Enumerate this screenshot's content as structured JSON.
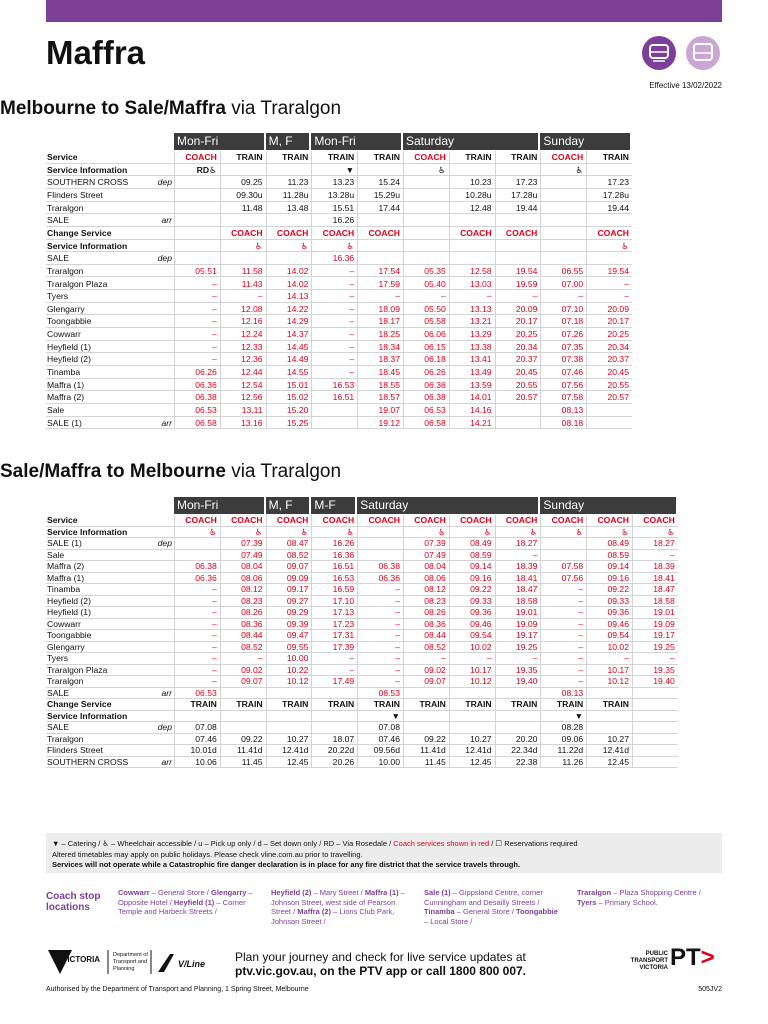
{
  "header": {
    "title": "Maffra",
    "effective": "Effective 13/02/2022"
  },
  "tables": [
    {
      "title": "Melbourne to Sale/Maffra",
      "via": "via Traralgon",
      "groups": [
        {
          "label": "Mon-Fri",
          "span": 2
        },
        {
          "label": "M, F",
          "span": 1
        },
        {
          "label": "Mon-Fri",
          "span": 2
        },
        {
          "label": "Saturday",
          "span": 3
        },
        {
          "label": "Sunday",
          "span": 2
        }
      ],
      "sections": [
        {
          "color": "#111111",
          "rows": [
            {
              "label": "Service",
              "bold": true,
              "cells": [
                {
                  "text": "COACH",
                  "color": "#e0001b"
                },
                "TRAIN",
                "TRAIN",
                "TRAIN",
                "TRAIN",
                {
                  "text": "COACH",
                  "color": "#e0001b"
                },
                "TRAIN",
                "TRAIN",
                {
                  "text": "COACH",
                  "color": "#e0001b"
                },
                "TRAIN"
              ]
            },
            {
              "label": "Service Information",
              "bold": true,
              "cells": [
                "RD♿",
                "",
                "",
                "▼",
                "",
                "♿",
                "",
                "",
                "♿",
                ""
              ]
            },
            {
              "label": "SOUTHERN CROSS",
              "note": "dep",
              "cells": [
                "",
                "09.25",
                "11.23",
                "13.23",
                "15.24",
                "",
                "10.23",
                "17.23",
                "",
                "17.23"
              ]
            },
            {
              "label": "Flinders Street",
              "cells": [
                "",
                "09.30u",
                "11.28u",
                "13.28u",
                "15.29u",
                "",
                "10.28u",
                "17.28u",
                "",
                "17.28u"
              ]
            },
            {
              "label": "Traralgon",
              "cells": [
                "",
                "11.48",
                "13.48",
                "15.51",
                "17.44",
                "",
                "12.48",
                "19.44",
                "",
                "19.44"
              ]
            },
            {
              "label": "SALE",
              "note": "arr",
              "cells": [
                "",
                "",
                "",
                "16.26",
                "",
                "",
                "",
                "",
                "",
                ""
              ]
            }
          ]
        },
        {
          "color": "#e0001b",
          "rows": [
            {
              "label": "Change Service",
              "bold": true,
              "cells": [
                "",
                "COACH",
                "COACH",
                "COACH",
                "COACH",
                "",
                "COACH",
                "COACH",
                "",
                "COACH"
              ]
            },
            {
              "label": "Service Information",
              "bold": true,
              "cells": [
                "",
                "♿",
                "♿",
                "♿",
                "",
                "",
                "",
                "",
                "",
                "♿"
              ]
            },
            {
              "label": "SALE",
              "note": "dep",
              "cells": [
                "",
                "",
                "",
                "16.36",
                "",
                "",
                "",
                "",
                "",
                ""
              ]
            },
            {
              "label": "Traralgon",
              "cells": [
                "05.51",
                "11.58",
                "14.02",
                "–",
                "17.54",
                "05.35",
                "12.58",
                "19.54",
                "06.55",
                "19.54"
              ]
            },
            {
              "label": "Traralgon Plaza",
              "cells": [
                "–",
                "11.43",
                "14.02",
                "–",
                "17.59",
                "05.40",
                "13.03",
                "19.59",
                "07.00",
                "–"
              ]
            },
            {
              "label": "Tyers",
              "cells": [
                "–",
                "–",
                "14.13",
                "–",
                "–",
                "–",
                "–",
                "–",
                "–",
                "–"
              ]
            },
            {
              "label": "Glengarry",
              "cells": [
                "–",
                "12.08",
                "14.22",
                "–",
                "18.09",
                "05.50",
                "13.13",
                "20.09",
                "07.10",
                "20.09"
              ]
            },
            {
              "label": "Toongabbie",
              "cells": [
                "–",
                "12.16",
                "14.29",
                "–",
                "18.17",
                "05.58",
                "13.21",
                "20.17",
                "07.18",
                "20.17"
              ]
            },
            {
              "label": "Cowwarr",
              "cells": [
                "–",
                "12.24",
                "14.37",
                "–",
                "18.25",
                "06.06",
                "13.29",
                "20.25",
                "07.26",
                "20.25"
              ]
            },
            {
              "label": "Heyfield (1)",
              "cells": [
                "–",
                "12.33",
                "14.45",
                "–",
                "18.34",
                "06.15",
                "13.38",
                "20.34",
                "07.35",
                "20.34"
              ]
            },
            {
              "label": "Heyfield (2)",
              "cells": [
                "–",
                "12.36",
                "14.49",
                "–",
                "18.37",
                "06.18",
                "13.41",
                "20.37",
                "07.38",
                "20.37"
              ]
            },
            {
              "label": "Tinamba",
              "cells": [
                "06.26",
                "12.44",
                "14.55",
                "–",
                "18.45",
                "06.26",
                "13.49",
                "20.45",
                "07.46",
                "20.45"
              ]
            },
            {
              "label": "Maffra (1)",
              "cells": [
                "06.36",
                "12.54",
                "15.01",
                "16.53",
                "18.55",
                "06.36",
                "13.59",
                "20.55",
                "07.56",
                "20.55"
              ]
            },
            {
              "label": "Maffra (2)",
              "cells": [
                "06.38",
                "12.56",
                "15.02",
                "16.51",
                "18.57",
                "06.38",
                "14.01",
                "20.57",
                "07.58",
                "20.57"
              ]
            },
            {
              "label": "Sale",
              "cells": [
                "06.53",
                "13.11",
                "15.20",
                "",
                "19.07",
                "06.53",
                "14.16",
                "",
                "08.13",
                ""
              ]
            },
            {
              "label": "SALE (1)",
              "note": "arr",
              "cells": [
                "06.58",
                "13.16",
                "15.25",
                "",
                "19.12",
                "06.58",
                "14.21",
                "",
                "08.18",
                ""
              ]
            }
          ]
        }
      ]
    },
    {
      "title": "Sale/Maffra to Melbourne",
      "via": "via Traralgon",
      "groups": [
        {
          "label": "Mon-Fri",
          "span": 2
        },
        {
          "label": "M, F",
          "span": 1
        },
        {
          "label": "M-F",
          "span": 1
        },
        {
          "label": "Saturday",
          "span": 4
        },
        {
          "label": "Sunday",
          "span": 3
        }
      ],
      "sections": [
        {
          "color": "#e0001b",
          "rows": [
            {
              "label": "Service",
              "bold": true,
              "cells": [
                "COACH",
                "COACH",
                "COACH",
                "COACH",
                "COACH",
                "COACH",
                "COACH",
                "COACH",
                "COACH",
                "COACH",
                "COACH"
              ]
            },
            {
              "label": "Service Information",
              "bold": true,
              "cells": [
                "♿",
                "♿",
                "♿",
                "♿",
                "",
                "♿",
                "♿",
                "♿",
                "♿",
                "♿",
                "♿"
              ]
            },
            {
              "label": "SALE (1)",
              "note": "dep",
              "cells": [
                "",
                "07.39",
                "08.47",
                "16.26",
                "",
                "07.39",
                "08.49",
                "18.27",
                "",
                "08.49",
                "18.27"
              ]
            },
            {
              "label": "Sale",
              "cells": [
                "",
                "07.49",
                "08.52",
                "16.36",
                "",
                "07.49",
                "08.59",
                "–",
                "",
                "08.59",
                "–"
              ]
            },
            {
              "label": "Maffra (2)",
              "cells": [
                "06.38",
                "08.04",
                "09.07",
                "16.51",
                "06.38",
                "08.04",
                "09.14",
                "18.39",
                "07.58",
                "09.14",
                "18.39"
              ]
            },
            {
              "label": "Maffra (1)",
              "cells": [
                "06.36",
                "08.06",
                "09.09",
                "16.53",
                "06.36",
                "08.06",
                "09.16",
                "18.41",
                "07.56",
                "09.16",
                "18.41"
              ]
            },
            {
              "label": "Tinamba",
              "cells": [
                "–",
                "08.12",
                "09.17",
                "16.59",
                "–",
                "08.12",
                "09.22",
                "18.47",
                "–",
                "09.22",
                "18.47"
              ]
            },
            {
              "label": "Heyfield (2)",
              "cells": [
                "–",
                "08.23",
                "09.27",
                "17.10",
                "–",
                "08.23",
                "09.33",
                "18.58",
                "–",
                "09.33",
                "18.58"
              ]
            },
            {
              "label": "Heyfield (1)",
              "cells": [
                "–",
                "08.26",
                "09.29",
                "17.13",
                "–",
                "08.26",
                "09.36",
                "19.01",
                "–",
                "09.36",
                "19.01"
              ]
            },
            {
              "label": "Cowwarr",
              "cells": [
                "–",
                "08.36",
                "09.39",
                "17.23",
                "–",
                "08.36",
                "09.46",
                "19.09",
                "–",
                "09.46",
                "19.09"
              ]
            },
            {
              "label": "Toongabbie",
              "cells": [
                "–",
                "08.44",
                "09.47",
                "17.31",
                "–",
                "08.44",
                "09.54",
                "19.17",
                "–",
                "09.54",
                "19.17"
              ]
            },
            {
              "label": "Glengarry",
              "cells": [
                "–",
                "08.52",
                "09.55",
                "17.39",
                "–",
                "08.52",
                "10.02",
                "19.25",
                "–",
                "10.02",
                "19.25"
              ]
            },
            {
              "label": "Tyers",
              "cells": [
                "–",
                "–",
                "10.00",
                "–",
                "–",
                "–",
                "–",
                "–",
                "–",
                "–",
                "–"
              ]
            },
            {
              "label": "Traralgon Plaza",
              "cells": [
                "–",
                "09.02",
                "10.22",
                "–",
                "–",
                "09.02",
                "10.17",
                "19.35",
                "–",
                "10.17",
                "19.35"
              ]
            },
            {
              "label": "Traralgon",
              "cells": [
                "–",
                "09.07",
                "10.12",
                "17.49",
                "–",
                "09.07",
                "10.12",
                "19.40",
                "–",
                "10.12",
                "19.40"
              ]
            },
            {
              "label": "SALE",
              "note": "arr",
              "cells": [
                "06.53",
                "",
                "",
                "",
                "06.53",
                "",
                "",
                "",
                "08.13",
                "",
                ""
              ]
            }
          ]
        },
        {
          "color": "#111111",
          "rows": [
            {
              "label": "Change Service",
              "bold": true,
              "cells": [
                "TRAIN",
                "TRAIN",
                "TRAIN",
                "TRAIN",
                "TRAIN",
                "TRAIN",
                "TRAIN",
                "TRAIN",
                "TRAIN",
                "TRAIN",
                ""
              ]
            },
            {
              "label": "Service Information",
              "bold": true,
              "cells": [
                "",
                "",
                "",
                "",
                "▼",
                "",
                "",
                "",
                "▼",
                "",
                ""
              ]
            },
            {
              "label": "SALE",
              "note": "dep",
              "cells": [
                "07.08",
                "",
                "",
                "",
                "07.08",
                "",
                "",
                "",
                "08.28",
                "",
                ""
              ]
            },
            {
              "label": "Traralgon",
              "cells": [
                "07.46",
                "09.22",
                "10.27",
                "18.07",
                "07.46",
                "09.22",
                "10.27",
                "20.20",
                "09.06",
                "10.27",
                ""
              ]
            },
            {
              "label": "Flinders Street",
              "cells": [
                "10.01d",
                "11.41d",
                "12.41d",
                "20.22d",
                "09.56d",
                "11.41d",
                "12.41d",
                "22.34d",
                "11.22d",
                "12.41d",
                ""
              ]
            },
            {
              "label": "SOUTHERN CROSS",
              "note": "arr",
              "cells": [
                "10.06",
                "11.45",
                "12.45",
                "20.26",
                "10.00",
                "11.45",
                "12.45",
                "22.38",
                "11.26",
                "12.45",
                ""
              ]
            }
          ]
        }
      ]
    }
  ],
  "notes": {
    "legend": "▼ – Catering / ♿ – Wheelchair accessible / u – Pick up only / d – Set down only / RD – Via Rosedale / ",
    "legend_red": "Coach services shown in red",
    "legend_end": " / ☐ Reservations required",
    "holidays": "Altered timetables may apply on public holidays. Please check vline.com.au prior to travelling.",
    "fire": "Services will not operate while a Catastrophic fire danger declaration is in place for any fire district that the service travels through."
  },
  "stops": {
    "title": "Coach stop locations",
    "columns": [
      [
        {
          "name": "Cowwarr",
          "text": " – General Store /"
        },
        {
          "name": "Glengarry",
          "text": " – Opposite Hotel /"
        },
        {
          "name": "Heyfield (1)",
          "text": " – Corner Temple and Harbeck Streets /"
        }
      ],
      [
        {
          "name": "Heyfield (2)",
          "text": " – Mary Street /"
        },
        {
          "name": "Maffra (1)",
          "text": " – Johnson Street, west side of Pearson Street /"
        },
        {
          "name": "Maffra (2)",
          "text": " – Lions Club Park, Johnson Street /"
        }
      ],
      [
        {
          "name": "Sale (1)",
          "text": " – Gippsland Centre, corner Cunningham and Desailly Streets /"
        },
        {
          "name": "Tinamba",
          "text": " – General Store /"
        },
        {
          "name": "Toongabbie",
          "text": " – Local Store /"
        }
      ],
      [
        {
          "name": "Traralgon",
          "text": " – Plaza Shopping Centre /"
        },
        {
          "name": "Tyers",
          "text": " – Primary School."
        }
      ]
    ]
  },
  "footer": {
    "victoria": "VICTORIA",
    "department": "Department of Transport and Planning",
    "vline": "V/Line",
    "plan": "Plan your journey and check for live service updates at",
    "plan_link": "ptv.vic.gov.au, on the PTV app or call 1800 800 007.",
    "ptv": "PUBLIC TRANSPORT VICTORIA",
    "pt": "PT",
    "authorised": "Authorised by the Department of Transport and Planning, 1 Spring Street, Melbourne",
    "code": "505JV2"
  }
}
